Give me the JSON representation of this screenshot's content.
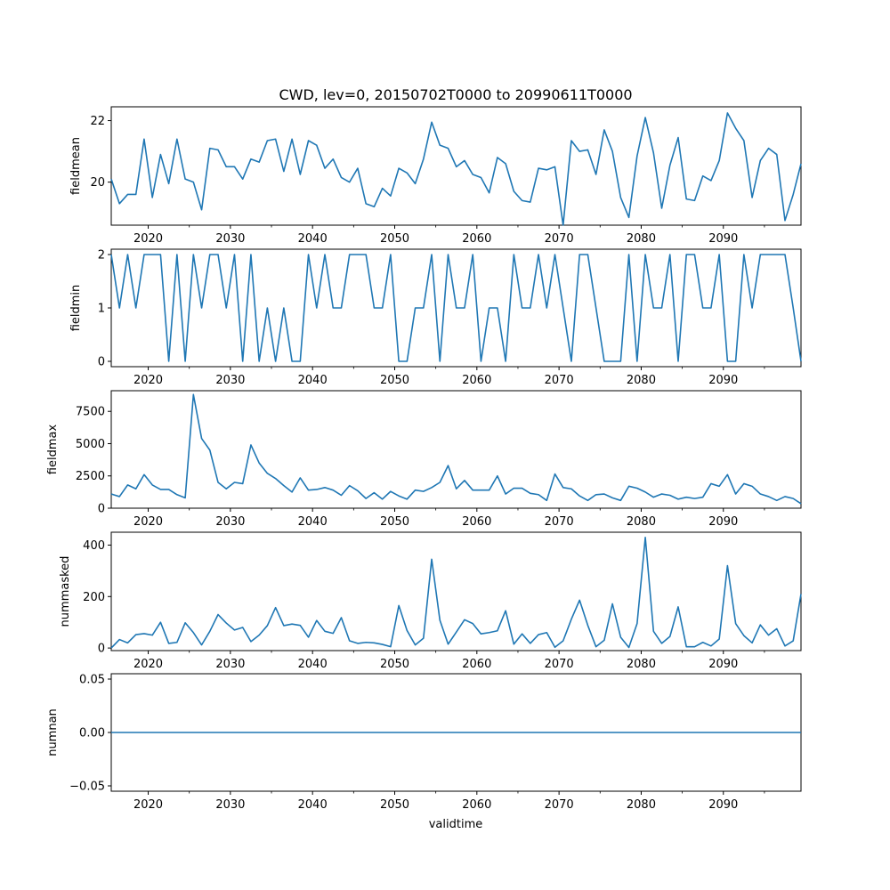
{
  "chart_data": {
    "title": "CWD, lev=0, 20150702T0000 to 20990611T0000",
    "type": "line",
    "xlabel": "validtime",
    "xlim": [
      2015.5,
      2099.45
    ],
    "xticks": [
      2020,
      2030,
      2040,
      2050,
      2060,
      2070,
      2080,
      2090
    ],
    "xtick_labels": [
      "2020",
      "2030",
      "2040",
      "2050",
      "2060",
      "2070",
      "2080",
      "2090"
    ],
    "line_color": "#1f77b4",
    "x": [
      2015.5,
      2016.5,
      2017.5,
      2018.5,
      2019.5,
      2020.5,
      2021.5,
      2022.5,
      2023.5,
      2024.5,
      2025.5,
      2026.5,
      2027.5,
      2028.5,
      2029.5,
      2030.5,
      2031.5,
      2032.5,
      2033.5,
      2034.5,
      2035.5,
      2036.5,
      2037.5,
      2038.5,
      2039.5,
      2040.5,
      2041.5,
      2042.5,
      2043.5,
      2044.5,
      2045.5,
      2046.5,
      2047.5,
      2048.5,
      2049.5,
      2050.5,
      2051.5,
      2052.5,
      2053.5,
      2054.5,
      2055.5,
      2056.5,
      2057.5,
      2058.5,
      2059.5,
      2060.5,
      2061.5,
      2062.5,
      2063.5,
      2064.5,
      2065.5,
      2066.5,
      2067.5,
      2068.5,
      2069.5,
      2070.5,
      2071.5,
      2072.5,
      2073.5,
      2074.5,
      2075.5,
      2076.5,
      2077.5,
      2078.5,
      2079.5,
      2080.5,
      2081.5,
      2082.5,
      2083.5,
      2084.5,
      2085.5,
      2086.5,
      2087.5,
      2088.5,
      2089.5,
      2090.5,
      2091.5,
      2092.5,
      2093.5,
      2094.5,
      2095.5,
      2096.5,
      2097.5,
      2098.5,
      2099.45
    ],
    "panels": [
      {
        "ylabel": "fieldmean",
        "ylim": [
          18.6,
          22.45
        ],
        "yticks": [
          20,
          22
        ],
        "ytick_labels": [
          "20",
          "22"
        ],
        "values": [
          20.1,
          19.3,
          19.6,
          19.6,
          21.4,
          19.5,
          20.9,
          19.95,
          21.4,
          20.1,
          20.0,
          19.1,
          21.1,
          21.05,
          20.5,
          20.5,
          20.1,
          20.75,
          20.65,
          21.35,
          21.4,
          20.35,
          21.4,
          20.25,
          21.35,
          21.2,
          20.45,
          20.75,
          20.15,
          20.0,
          20.45,
          19.3,
          19.2,
          19.8,
          19.55,
          20.45,
          20.3,
          19.95,
          20.75,
          21.95,
          21.2,
          21.1,
          20.5,
          20.7,
          20.25,
          20.15,
          19.65,
          20.8,
          20.6,
          19.7,
          19.4,
          19.35,
          20.45,
          20.4,
          20.5,
          18.6,
          21.35,
          21.0,
          21.05,
          20.25,
          21.7,
          21.0,
          19.5,
          18.85,
          20.85,
          22.1,
          20.95,
          19.15,
          20.55,
          21.45,
          19.45,
          19.4,
          20.2,
          20.05,
          20.7,
          22.25,
          21.75,
          21.35,
          19.5,
          20.7,
          21.1,
          20.9,
          18.75,
          19.6,
          20.6
        ]
      },
      {
        "ylabel": "fieldmin",
        "ylim": [
          -0.1,
          2.1
        ],
        "yticks": [
          0,
          1,
          2
        ],
        "ytick_labels": [
          "0",
          "1",
          "2"
        ],
        "values": [
          2,
          1,
          2,
          1,
          2,
          2,
          2,
          0,
          2,
          0,
          2,
          1,
          2,
          2,
          1,
          2,
          0,
          2,
          0,
          1,
          0,
          1,
          0,
          0,
          2,
          1,
          2,
          1,
          1,
          2,
          2,
          2,
          1,
          1,
          2,
          0,
          0,
          1,
          1,
          2,
          0,
          2,
          1,
          1,
          2,
          0,
          1,
          1,
          0,
          2,
          1,
          1,
          2,
          1,
          2,
          1,
          0,
          2,
          2,
          1,
          0,
          0,
          0,
          2,
          0,
          2,
          1,
          1,
          2,
          0,
          2,
          2,
          1,
          1,
          2,
          0,
          0,
          2,
          1,
          2,
          2,
          2,
          2,
          1,
          0
        ]
      },
      {
        "ylabel": "fieldmax",
        "ylim": [
          0,
          9100
        ],
        "yticks": [
          0,
          2500,
          5000,
          7500
        ],
        "ytick_labels": [
          "0",
          "2500",
          "5000",
          "7500"
        ],
        "values": [
          1100,
          900,
          1800,
          1500,
          2600,
          1800,
          1450,
          1450,
          1050,
          800,
          8800,
          5400,
          4500,
          2000,
          1500,
          2000,
          1900,
          4900,
          3500,
          2700,
          2300,
          1750,
          1250,
          2350,
          1400,
          1450,
          1600,
          1400,
          1000,
          1750,
          1350,
          750,
          1200,
          700,
          1300,
          950,
          700,
          1400,
          1300,
          1600,
          2000,
          3300,
          1500,
          2150,
          1400,
          1400,
          1400,
          2500,
          1100,
          1550,
          1550,
          1150,
          1050,
          600,
          2650,
          1600,
          1500,
          950,
          600,
          1050,
          1100,
          800,
          600,
          1700,
          1550,
          1250,
          850,
          1100,
          1000,
          700,
          850,
          750,
          850,
          1900,
          1700,
          2600,
          1100,
          1900,
          1700,
          1100,
          900,
          600,
          900,
          750,
          350
        ]
      },
      {
        "ylabel": "nummasked",
        "ylim": [
          -10,
          450
        ],
        "yticks": [
          0,
          200,
          400
        ],
        "ytick_labels": [
          "0",
          "200",
          "400"
        ],
        "values": [
          0,
          33,
          20,
          52,
          56,
          50,
          100,
          18,
          22,
          98,
          60,
          12,
          65,
          130,
          97,
          70,
          80,
          25,
          50,
          87,
          157,
          87,
          93,
          88,
          42,
          107,
          65,
          57,
          118,
          28,
          18,
          22,
          20,
          14,
          5,
          165,
          68,
          12,
          38,
          345,
          108,
          15,
          62,
          110,
          95,
          55,
          60,
          67,
          145,
          15,
          55,
          18,
          52,
          60,
          3,
          28,
          112,
          186,
          88,
          5,
          30,
          172,
          42,
          2,
          95,
          430,
          65,
          18,
          45,
          160,
          5,
          5,
          22,
          8,
          35,
          320,
          95,
          48,
          20,
          90,
          50,
          75,
          8,
          28,
          210
        ]
      },
      {
        "ylabel": "numnan",
        "ylim": [
          -0.055,
          0.055
        ],
        "yticks": [
          -0.05,
          0.0,
          0.05
        ],
        "ytick_labels": [
          "−0.05",
          "0.00",
          "0.05"
        ],
        "constant_value": 0
      }
    ]
  }
}
